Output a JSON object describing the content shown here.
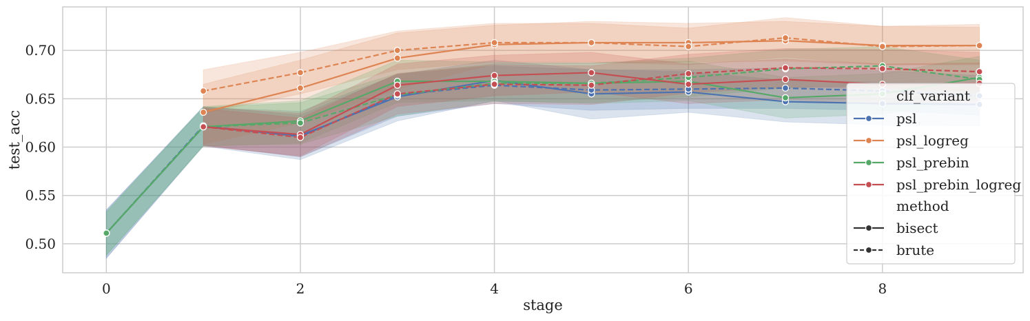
{
  "chart_data": {
    "type": "line",
    "xlabel": "stage",
    "ylabel": "test_acc",
    "xlim": [
      -0.45,
      9.45
    ],
    "ylim": [
      0.47,
      0.745
    ],
    "xticks": [
      0,
      2,
      4,
      6,
      8
    ],
    "xtick_labels": [
      "0",
      "2",
      "4",
      "6",
      "8"
    ],
    "yticks": [
      0.5,
      0.55,
      0.6,
      0.65,
      0.7
    ],
    "ytick_labels": [
      "0.50",
      "0.55",
      "0.60",
      "0.65",
      "0.70"
    ],
    "grid": true,
    "legend_placement": "right",
    "legend": {
      "hue_title": "clf_variant",
      "style_title": "method",
      "styles": [
        {
          "label": "bisect",
          "dash": "solid"
        },
        {
          "label": "brute",
          "dash": "dashed"
        }
      ]
    },
    "series": [
      {
        "name": "psl",
        "method": "bisect",
        "color": "#4c72b0",
        "x": [
          0,
          1,
          2,
          3,
          4,
          5,
          6,
          7,
          8,
          9
        ],
        "y": [
          0.511,
          0.621,
          0.612,
          0.652,
          0.669,
          0.655,
          0.657,
          0.647,
          0.645,
          0.644
        ],
        "lower": [
          0.485,
          0.601,
          0.587,
          0.627,
          0.648,
          0.629,
          0.636,
          0.626,
          0.623,
          0.622
        ],
        "upper": [
          0.535,
          0.641,
          0.637,
          0.675,
          0.69,
          0.68,
          0.678,
          0.669,
          0.667,
          0.666
        ]
      },
      {
        "name": "psl",
        "method": "brute",
        "color": "#4c72b0",
        "x": [
          0,
          1,
          2,
          3,
          4,
          5,
          6,
          7,
          8,
          9
        ],
        "y": [
          0.511,
          0.622,
          0.611,
          0.654,
          0.664,
          0.659,
          0.66,
          0.661,
          0.658,
          0.653
        ],
        "lower": [
          0.485,
          0.602,
          0.59,
          0.632,
          0.645,
          0.638,
          0.64,
          0.64,
          0.638,
          0.633
        ],
        "upper": [
          0.535,
          0.642,
          0.633,
          0.675,
          0.684,
          0.68,
          0.68,
          0.682,
          0.679,
          0.674
        ]
      },
      {
        "name": "psl_logreg",
        "method": "bisect",
        "color": "#dd8452",
        "x": [
          1,
          2,
          3,
          4,
          5,
          6,
          7,
          8,
          9
        ],
        "y": [
          0.636,
          0.661,
          0.692,
          0.706,
          0.708,
          0.708,
          0.71,
          0.705,
          0.705
        ],
        "lower": [
          0.603,
          0.625,
          0.66,
          0.686,
          0.687,
          0.688,
          0.689,
          0.685,
          0.685
        ],
        "upper": [
          0.665,
          0.69,
          0.718,
          0.726,
          0.73,
          0.728,
          0.73,
          0.725,
          0.727
        ]
      },
      {
        "name": "psl_logreg",
        "method": "brute",
        "color": "#dd8452",
        "x": [
          1,
          2,
          3,
          4,
          5,
          6,
          7,
          8,
          9
        ],
        "y": [
          0.658,
          0.677,
          0.7,
          0.708,
          0.708,
          0.704,
          0.713,
          0.704,
          0.705
        ],
        "lower": [
          0.635,
          0.655,
          0.68,
          0.688,
          0.688,
          0.685,
          0.693,
          0.685,
          0.686
        ],
        "upper": [
          0.68,
          0.698,
          0.72,
          0.728,
          0.728,
          0.723,
          0.734,
          0.725,
          0.724
        ]
      },
      {
        "name": "psl_prebin",
        "method": "bisect",
        "color": "#55a868",
        "x": [
          0,
          1,
          2,
          3,
          4,
          5,
          6,
          7,
          8,
          9
        ],
        "y": [
          0.511,
          0.621,
          0.627,
          0.668,
          0.668,
          0.666,
          0.668,
          0.651,
          0.655,
          0.672
        ],
        "lower": [
          0.488,
          0.601,
          0.604,
          0.646,
          0.648,
          0.645,
          0.648,
          0.63,
          0.634,
          0.65
        ],
        "upper": [
          0.533,
          0.642,
          0.648,
          0.69,
          0.688,
          0.687,
          0.689,
          0.672,
          0.676,
          0.694
        ]
      },
      {
        "name": "psl_prebin",
        "method": "brute",
        "color": "#55a868",
        "x": [
          0,
          1,
          2,
          3,
          4,
          5,
          6,
          7,
          8,
          9
        ],
        "y": [
          0.511,
          0.621,
          0.625,
          0.654,
          0.666,
          0.666,
          0.672,
          0.681,
          0.684,
          0.67
        ],
        "lower": [
          0.488,
          0.601,
          0.603,
          0.632,
          0.647,
          0.646,
          0.652,
          0.661,
          0.664,
          0.65
        ],
        "upper": [
          0.533,
          0.641,
          0.646,
          0.676,
          0.686,
          0.687,
          0.692,
          0.701,
          0.704,
          0.69
        ]
      },
      {
        "name": "psl_prebin_logreg",
        "method": "bisect",
        "color": "#c44e52",
        "x": [
          1,
          2,
          3,
          4,
          5,
          6,
          7,
          8,
          9
        ],
        "y": [
          0.621,
          0.613,
          0.664,
          0.674,
          0.677,
          0.665,
          0.67,
          0.665,
          0.666
        ],
        "lower": [
          0.601,
          0.591,
          0.642,
          0.653,
          0.657,
          0.645,
          0.649,
          0.644,
          0.645
        ],
        "upper": [
          0.641,
          0.635,
          0.686,
          0.695,
          0.698,
          0.686,
          0.691,
          0.686,
          0.687
        ]
      },
      {
        "name": "psl_prebin_logreg",
        "method": "brute",
        "color": "#c44e52",
        "x": [
          1,
          2,
          3,
          4,
          5,
          6,
          7,
          8,
          9
        ],
        "y": [
          0.621,
          0.61,
          0.655,
          0.665,
          0.664,
          0.676,
          0.682,
          0.681,
          0.678
        ],
        "lower": [
          0.602,
          0.59,
          0.634,
          0.645,
          0.644,
          0.656,
          0.662,
          0.661,
          0.658
        ],
        "upper": [
          0.64,
          0.63,
          0.676,
          0.685,
          0.684,
          0.696,
          0.702,
          0.701,
          0.698
        ]
      }
    ]
  }
}
